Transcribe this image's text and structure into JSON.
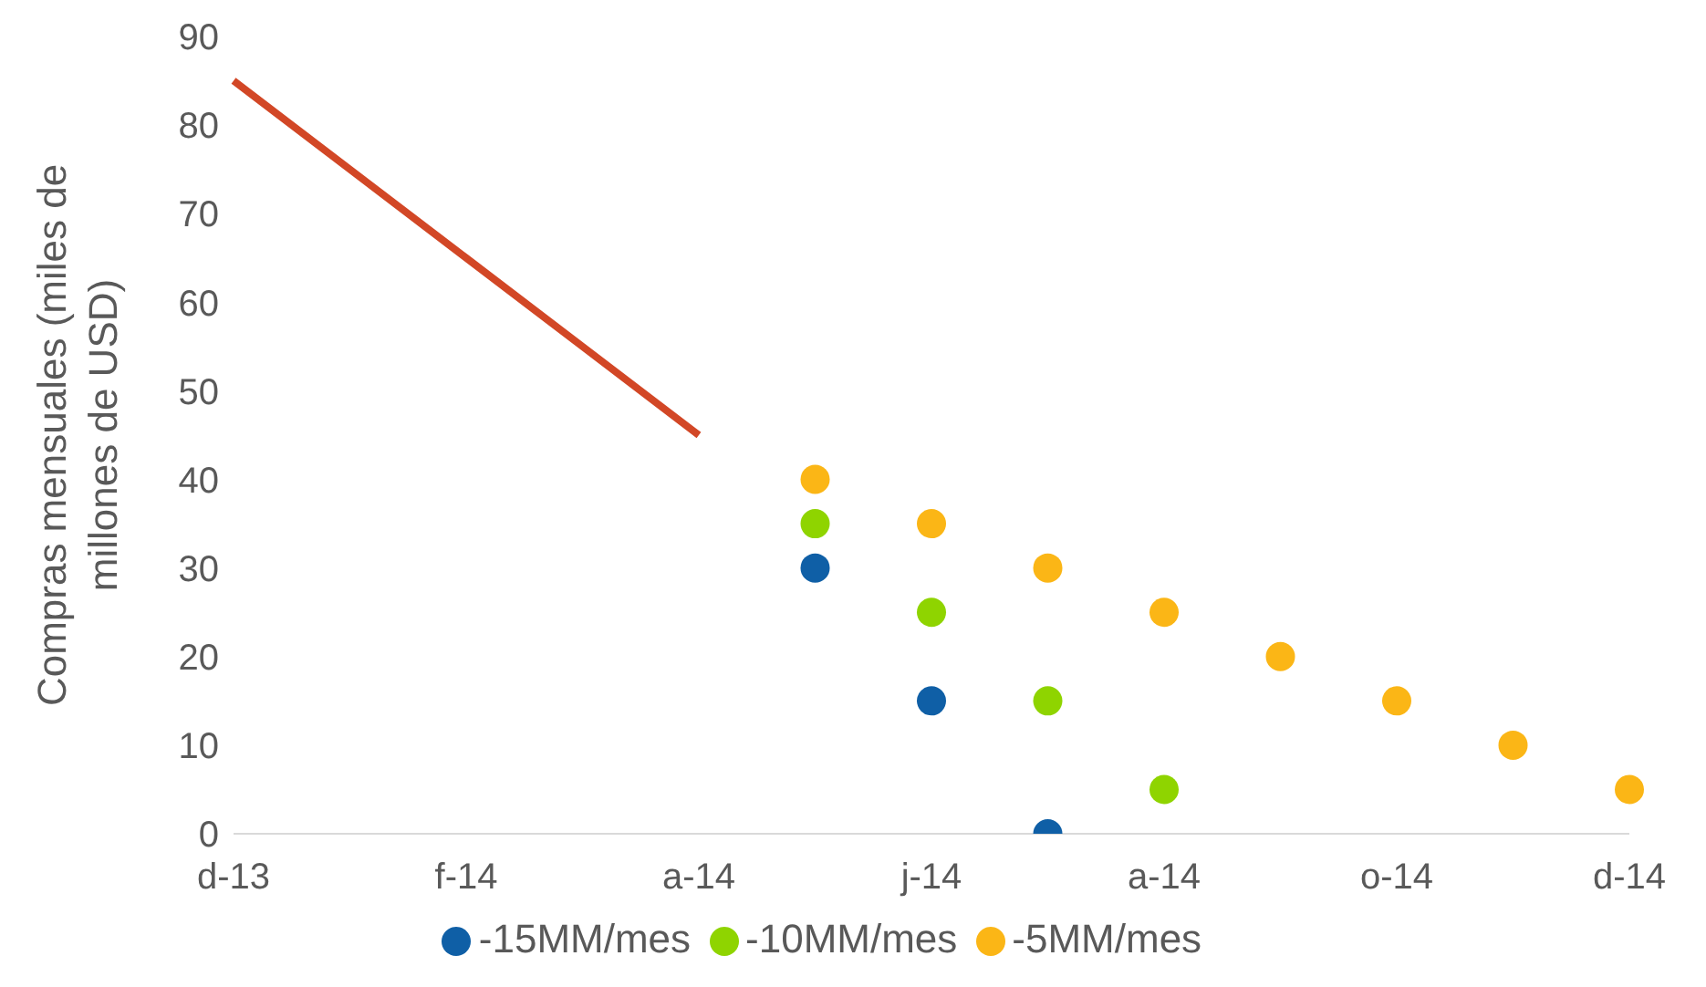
{
  "chart_data": {
    "type": "scatter",
    "ylabel": "Compras mensuales (miles de millones de USD)",
    "categories": [
      "d-13",
      null,
      "f-14",
      null,
      "a-14",
      null,
      "j-14",
      null,
      "a-14",
      null,
      "o-14",
      null,
      "d-14"
    ],
    "ylim": [
      0,
      90
    ],
    "yticks": [
      0,
      10,
      20,
      30,
      40,
      50,
      60,
      70,
      80,
      90
    ],
    "legend": "bottom",
    "grid": false,
    "marker": "circle",
    "series": [
      {
        "type": "line",
        "color": "#d24726",
        "marker": "none",
        "line_style": "solid",
        "values": [
          85,
          75,
          65,
          55,
          45,
          null,
          null,
          null,
          null,
          null,
          null,
          null,
          null
        ]
      },
      {
        "name": "-15MM/mes",
        "color": "#0f5fa6",
        "values": [
          null,
          null,
          null,
          null,
          null,
          30,
          15,
          0,
          null,
          null,
          null,
          null,
          null
        ]
      },
      {
        "name": "-10MM/mes",
        "color": "#8fd400",
        "values": [
          null,
          null,
          null,
          null,
          null,
          35,
          25,
          15,
          5,
          null,
          null,
          null,
          null
        ]
      },
      {
        "name": "-5MM/mes",
        "color": "#fbb616",
        "values": [
          null,
          null,
          null,
          null,
          null,
          40,
          35,
          30,
          25,
          20,
          15,
          10,
          5
        ]
      }
    ]
  }
}
